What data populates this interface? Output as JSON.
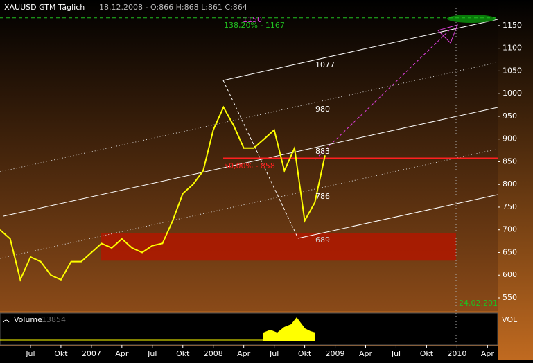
{
  "chart_data": {
    "type": "line",
    "title": "XAUUSD GTM Täglich",
    "subtitle": "18.12.2008 - O:866 H:868 L:861 C:864",
    "x": [
      "2006-04",
      "2006-05",
      "2006-06",
      "2006-07",
      "2006-08",
      "2006-09",
      "2006-10",
      "2006-11",
      "2006-12",
      "2007-01",
      "2007-02",
      "2007-03",
      "2007-04",
      "2007-05",
      "2007-06",
      "2007-07",
      "2007-08",
      "2007-09",
      "2007-10",
      "2007-11",
      "2007-12",
      "2008-01",
      "2008-02",
      "2008-03",
      "2008-04",
      "2008-05",
      "2008-06",
      "2008-07",
      "2008-08",
      "2008-09",
      "2008-10",
      "2008-11",
      "2008-12"
    ],
    "series": [
      {
        "name": "XAUUSD",
        "color": "#ffff00",
        "values": [
          700,
          680,
          590,
          640,
          630,
          600,
          590,
          630,
          630,
          650,
          670,
          660,
          680,
          660,
          650,
          665,
          670,
          720,
          780,
          800,
          830,
          920,
          970,
          930,
          880,
          880,
          900,
          920,
          830,
          880,
          720,
          760,
          864
        ]
      }
    ],
    "xlim": [
      "2006-04",
      "2010-05"
    ],
    "xticks": [
      {
        "value": "2006-07",
        "label": "Jul"
      },
      {
        "value": "2006-10",
        "label": "Okt"
      },
      {
        "value": "2007-01",
        "label": "2007"
      },
      {
        "value": "2007-04",
        "label": "Apr"
      },
      {
        "value": "2007-07",
        "label": "Jul"
      },
      {
        "value": "2007-10",
        "label": "Okt"
      },
      {
        "value": "2008-01",
        "label": "2008"
      },
      {
        "value": "2008-04",
        "label": "Apr"
      },
      {
        "value": "2008-07",
        "label": "Jul"
      },
      {
        "value": "2008-10",
        "label": "Okt"
      },
      {
        "value": "2009-01",
        "label": "2009"
      },
      {
        "value": "2009-04",
        "label": "Apr"
      },
      {
        "value": "2009-07",
        "label": "Jul"
      },
      {
        "value": "2009-10",
        "label": "Okt"
      },
      {
        "value": "2010-01",
        "label": "2010"
      },
      {
        "value": "2010-04",
        "label": "Apr"
      }
    ],
    "ylim": [
      521,
      1188
    ],
    "yticks": [
      550,
      600,
      650,
      700,
      750,
      800,
      850,
      900,
      950,
      1000,
      1050,
      1100,
      1150
    ],
    "hline": {
      "value": 858,
      "color": "#ff2020",
      "label": "50,00% - 858"
    },
    "target": {
      "value": 1167,
      "color": "#20c020",
      "label": "138,20% - 1167"
    },
    "zone": {
      "from": 632,
      "to": 693,
      "color": "#b01800"
    },
    "annotations": [
      "1077",
      "980",
      "883",
      "786",
      "689",
      "1150",
      "24.02.201"
    ],
    "volume": {
      "title": "Volume",
      "last": "13854",
      "axis_label": "VOL"
    }
  }
}
